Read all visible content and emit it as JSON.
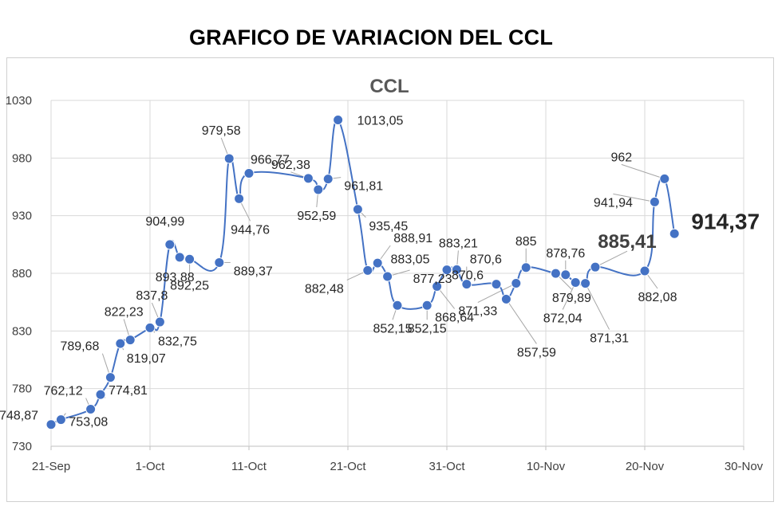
{
  "page": {
    "title": "GRAFICO DE VARIACION DEL CCL"
  },
  "chart_data": {
    "type": "line",
    "title": "CCL",
    "xlabel": "",
    "ylabel": "",
    "ylim": [
      730,
      1030
    ],
    "yticks": [
      "730",
      "780",
      "830",
      "880",
      "930",
      "980",
      "1030"
    ],
    "xticks": [
      "21-Sep",
      "1-Oct",
      "11-Oct",
      "21-Oct",
      "31-Oct",
      "10-Nov",
      "20-Nov",
      "30-Nov"
    ],
    "xlim": [
      "2021-09-21",
      "2021-11-30"
    ],
    "grid": true,
    "marker": "circle",
    "series": [
      {
        "color": "#4472C4",
        "points": [
          {
            "x": "2021-09-21",
            "y": 748.87,
            "label": "748,87"
          },
          {
            "x": "2021-09-22",
            "y": 753.08,
            "label": "753,08"
          },
          {
            "x": "2021-09-25",
            "y": 762.12,
            "label": "762,12"
          },
          {
            "x": "2021-09-26",
            "y": 774.81,
            "label": "774,81"
          },
          {
            "x": "2021-09-27",
            "y": 789.68,
            "label": "789,68"
          },
          {
            "x": "2021-09-28",
            "y": 819.07,
            "label": "819,07"
          },
          {
            "x": "2021-09-29",
            "y": 822.23,
            "label": "822,23"
          },
          {
            "x": "2021-10-01",
            "y": 832.75,
            "label": "832,75"
          },
          {
            "x": "2021-10-02",
            "y": 837.8,
            "label": "837,8"
          },
          {
            "x": "2021-10-03",
            "y": 904.99,
            "label": "904,99"
          },
          {
            "x": "2021-10-04",
            "y": 893.88,
            "label": "893,88"
          },
          {
            "x": "2021-10-05",
            "y": 892.25,
            "label": "892,25"
          },
          {
            "x": "2021-10-08",
            "y": 889.37,
            "label": "889,37"
          },
          {
            "x": "2021-10-09",
            "y": 979.58,
            "label": "979,58"
          },
          {
            "x": "2021-10-10",
            "y": 944.76,
            "label": "944,76"
          },
          {
            "x": "2021-10-11",
            "y": 966.77,
            "label": "966,77"
          },
          {
            "x": "2021-10-17",
            "y": 962.38,
            "label": "962,38"
          },
          {
            "x": "2021-10-18",
            "y": 952.59,
            "label": "952,59"
          },
          {
            "x": "2021-10-19",
            "y": 961.81,
            "label": "961,81"
          },
          {
            "x": "2021-10-20",
            "y": 1013.05,
            "label": "1013,05"
          },
          {
            "x": "2021-10-22",
            "y": 935.45,
            "label": "935,45"
          },
          {
            "x": "2021-10-23",
            "y": 882.48,
            "label": "882,48"
          },
          {
            "x": "2021-10-24",
            "y": 888.91,
            "label": "888,91"
          },
          {
            "x": "2021-10-25",
            "y": 877.23,
            "label": "877,23"
          },
          {
            "x": "2021-10-26",
            "y": 852.15,
            "label": "852,15"
          },
          {
            "x": "2021-10-29",
            "y": 852.15,
            "label": "852,15"
          },
          {
            "x": "2021-10-30",
            "y": 868.64,
            "label": "868,64"
          },
          {
            "x": "2021-10-31",
            "y": 883.05,
            "label": "883,05"
          },
          {
            "x": "2021-11-01",
            "y": 883.21,
            "label": "883,21"
          },
          {
            "x": "2021-11-02",
            "y": 870.6,
            "label": "870,6"
          },
          {
            "x": "2021-11-05",
            "y": 870.6,
            "label": "870,6"
          },
          {
            "x": "2021-11-06",
            "y": 857.59,
            "label": "857,59"
          },
          {
            "x": "2021-11-07",
            "y": 871.33,
            "label": "871,33"
          },
          {
            "x": "2021-11-08",
            "y": 885,
            "label": "885"
          },
          {
            "x": "2021-11-11",
            "y": 879.89,
            "label": "879,89"
          },
          {
            "x": "2021-11-12",
            "y": 878.76,
            "label": "878,76"
          },
          {
            "x": "2021-11-13",
            "y": 872.04,
            "label": "872,04"
          },
          {
            "x": "2021-11-14",
            "y": 871.31,
            "label": "871,31"
          },
          {
            "x": "2021-11-15",
            "y": 885.41,
            "label": "885,41"
          },
          {
            "x": "2021-11-20",
            "y": 882.08,
            "label": "882,08"
          },
          {
            "x": "2021-11-21",
            "y": 941.94,
            "label": "941,94"
          },
          {
            "x": "2021-11-22",
            "y": 962,
            "label": "962"
          },
          {
            "x": "2021-11-23",
            "y": 914.37,
            "label": "914,37"
          }
        ]
      }
    ]
  }
}
